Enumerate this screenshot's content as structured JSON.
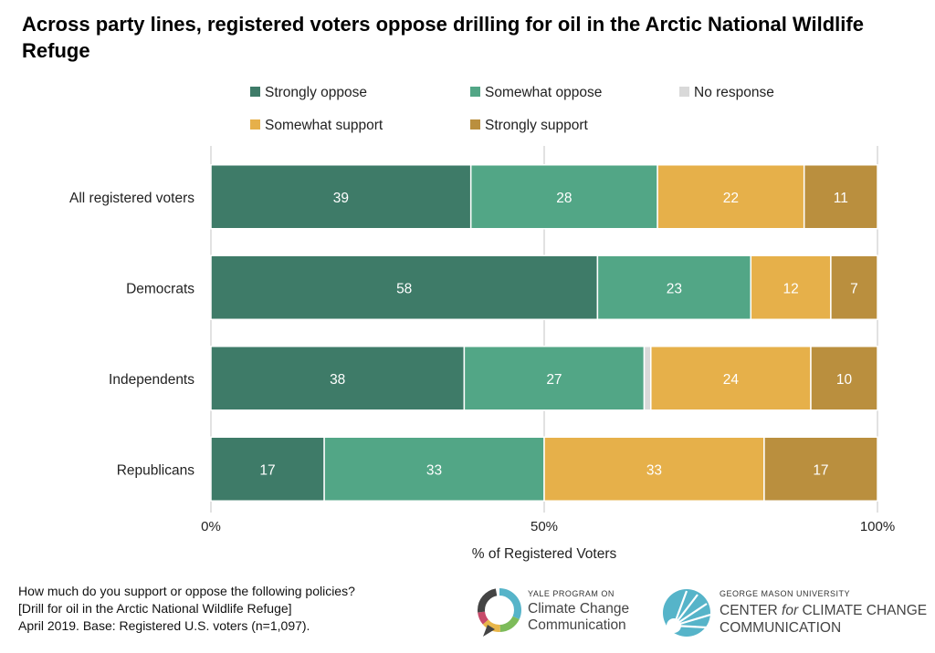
{
  "title": "Across party lines, registered voters oppose drilling for oil in the Arctic National Wildlife Refuge",
  "chart_data": {
    "type": "bar",
    "orientation": "horizontal",
    "stacked": true,
    "categories": [
      "All registered voters",
      "Democrats",
      "Independents",
      "Republicans"
    ],
    "series": [
      {
        "name": "Strongly oppose",
        "color": "#3E7B68",
        "values": [
          39,
          58,
          38,
          17
        ]
      },
      {
        "name": "Somewhat oppose",
        "color": "#52A686",
        "values": [
          28,
          23,
          27,
          33
        ]
      },
      {
        "name": "No response",
        "color": "#D9D9D9",
        "values": [
          0,
          0,
          1,
          0
        ]
      },
      {
        "name": "Somewhat support",
        "color": "#E6B04A",
        "values": [
          22,
          12,
          24,
          33
        ]
      },
      {
        "name": "Strongly support",
        "color": "#BA8F3E",
        "values": [
          11,
          7,
          10,
          17
        ]
      }
    ],
    "xlabel": "% of Registered Voters",
    "xlim": [
      0,
      100
    ],
    "xticks": [
      "0%",
      "50%",
      "100%"
    ],
    "grid": true,
    "legend_position": "top",
    "label_color": "#ffffff"
  },
  "footnote": {
    "line1": "How much do you support or oppose the following policies?",
    "line2": "[Drill for oil in the Arctic National Wildlife Refuge]",
    "line3": "April 2019. Base: Registered U.S. voters (n=1,097)."
  },
  "logos": {
    "yale": {
      "top": "YALE PROGRAM ON",
      "line1": "Climate Change",
      "line2": "Communication"
    },
    "gmu": {
      "top": "GEORGE MASON UNIVERSITY",
      "line1a": "CENTER ",
      "line1b": "for",
      "line1c": " CLIMATE CHANGE",
      "line2": "COMMUNICATION"
    }
  }
}
